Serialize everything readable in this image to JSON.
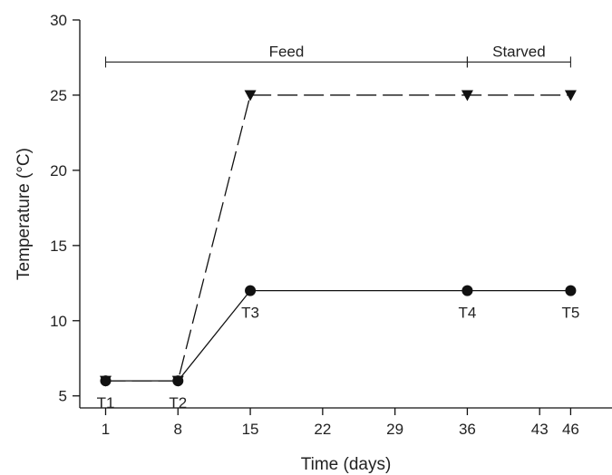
{
  "chart_data": {
    "type": "line",
    "title": "",
    "xlabel": "Time (days)",
    "ylabel": "Temperature (°C)",
    "xlim": [
      -1.5,
      50
    ],
    "ylim": [
      4.2,
      30
    ],
    "xticks": [
      1,
      8,
      15,
      22,
      29,
      36,
      43,
      46
    ],
    "yticks": [
      5,
      10,
      15,
      20,
      25,
      30
    ],
    "grid": false,
    "series": [
      {
        "style": "solid",
        "marker": "circle",
        "color": "#111111",
        "x": [
          1,
          8,
          15,
          36,
          46
        ],
        "y": [
          6,
          6,
          12,
          12,
          12
        ]
      },
      {
        "style": "dashed",
        "marker": "triangle-down",
        "color": "#111111",
        "x": [
          1,
          8,
          15,
          36,
          46
        ],
        "y": [
          6,
          6,
          25,
          25,
          25
        ]
      }
    ],
    "point_labels": [
      {
        "text": "T1",
        "x": 1,
        "y": 6
      },
      {
        "text": "T2",
        "x": 8,
        "y": 6
      },
      {
        "text": "T3",
        "x": 15,
        "y": 12
      },
      {
        "text": "T4",
        "x": 36,
        "y": 12
      },
      {
        "text": "T5",
        "x": 46,
        "y": 12
      }
    ],
    "phases": [
      {
        "label": "Feed",
        "start": 1,
        "end": 36
      },
      {
        "label": "Starved",
        "start": 36,
        "end": 46
      }
    ],
    "phase_bracket_y": 27.2
  }
}
